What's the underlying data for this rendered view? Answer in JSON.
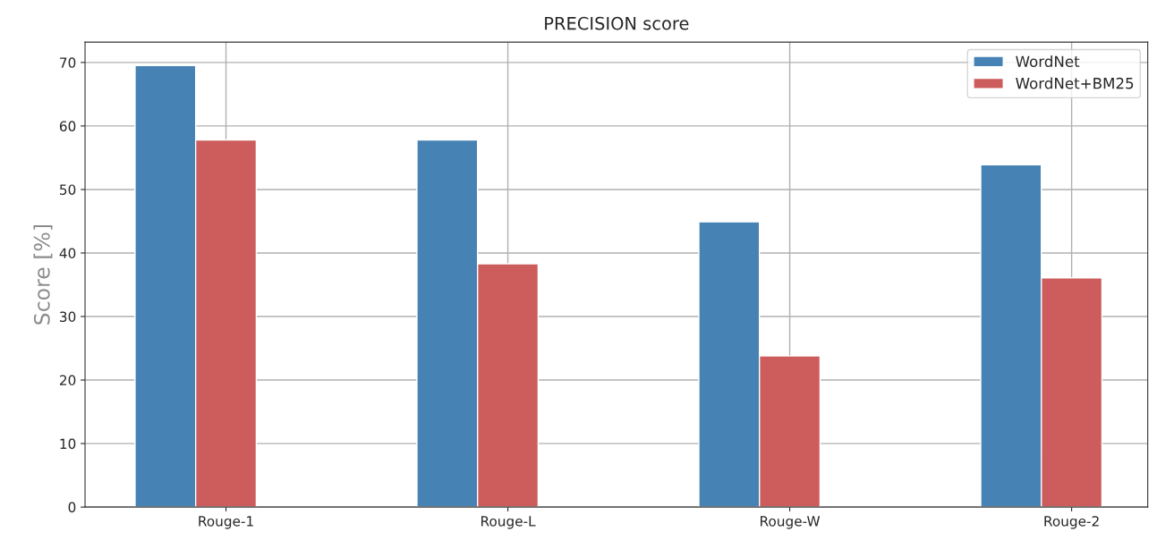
{
  "chart_data": {
    "type": "bar",
    "title": "PRECISION score",
    "ylabel": "Score [%]",
    "categories": [
      "Rouge-1",
      "Rouge-L",
      "Rouge-W",
      "Rouge-2"
    ],
    "series": [
      {
        "name": "WordNet",
        "color": "#4682b4",
        "values": [
          69.5,
          57.8,
          44.9,
          53.9
        ]
      },
      {
        "name": "WordNet+BM25",
        "color": "#cd5c5c",
        "values": [
          57.8,
          38.3,
          23.8,
          36.1
        ]
      }
    ],
    "ylim": [
      0,
      73.2
    ],
    "yticks": [
      0,
      10,
      20,
      30,
      40,
      50,
      60,
      70
    ],
    "grid": true,
    "legend": "top right"
  }
}
